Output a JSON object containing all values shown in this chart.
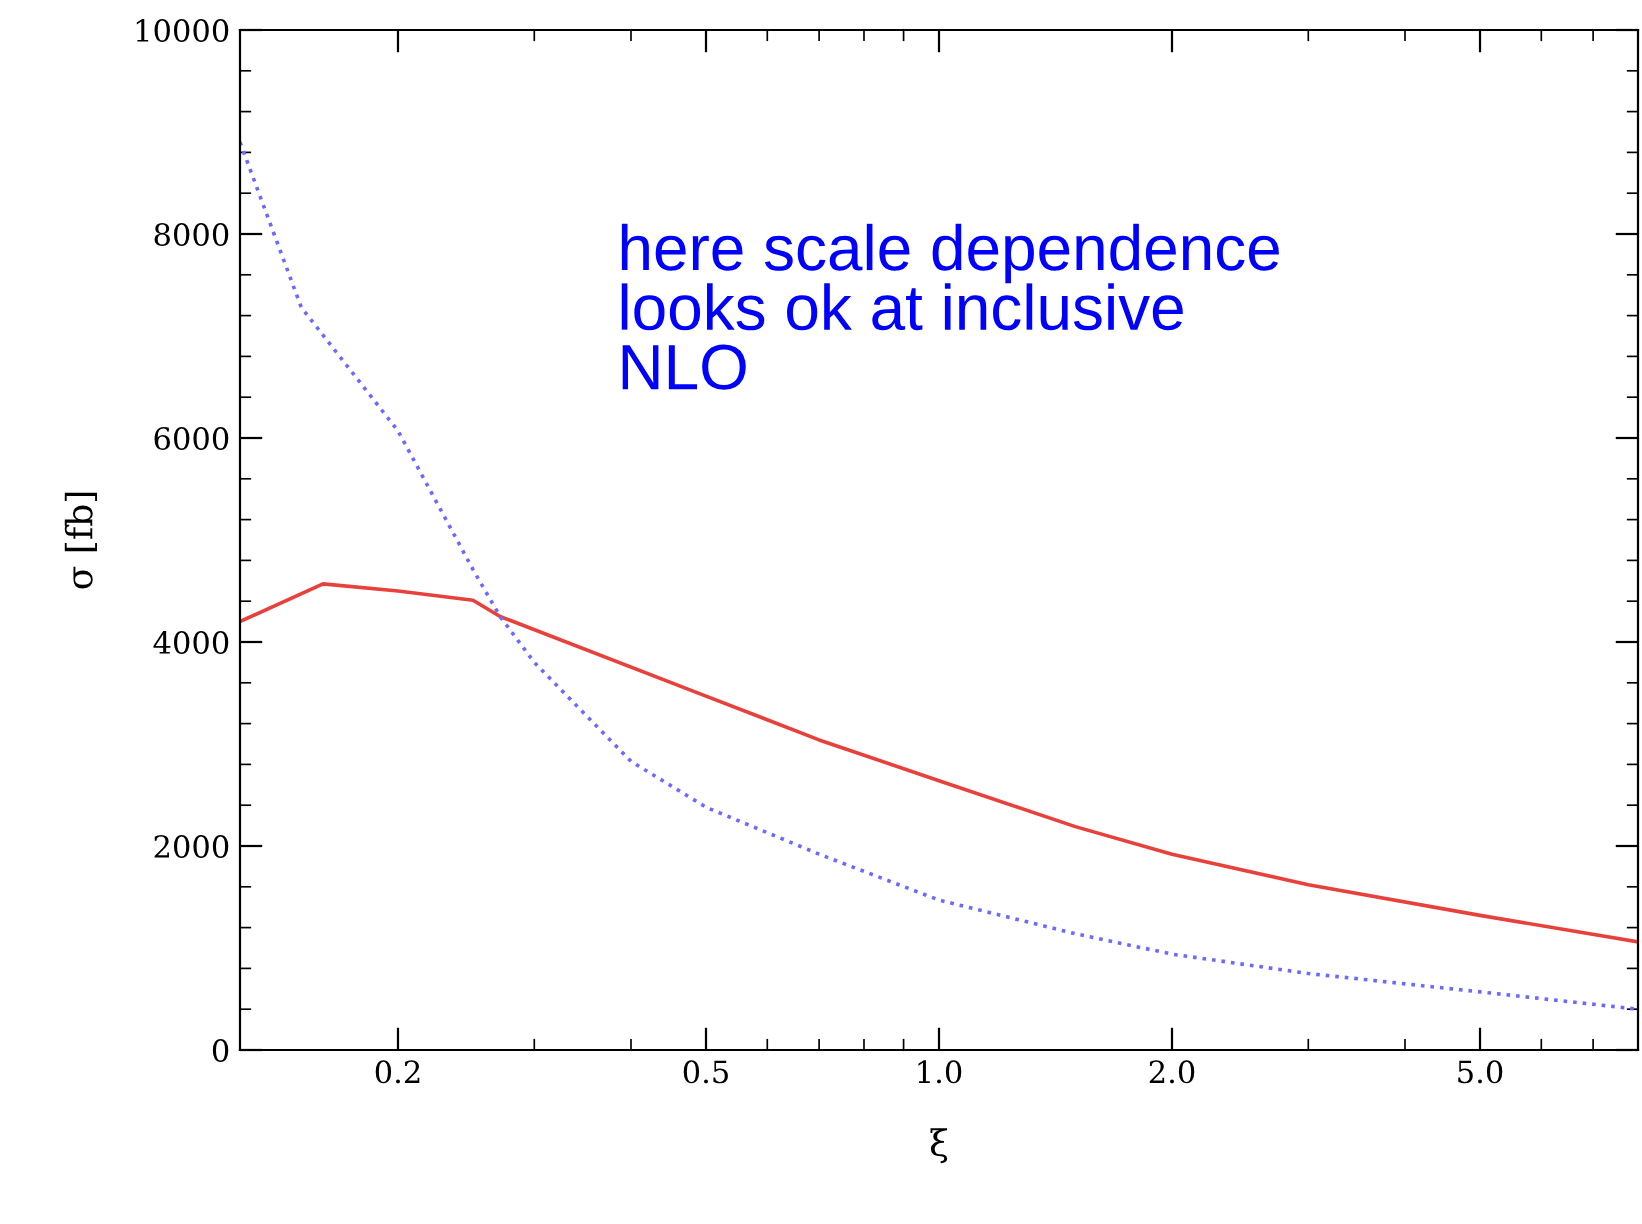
{
  "chart_data": {
    "type": "line",
    "xlabel": "ξ",
    "ylabel": "σ [fb]",
    "log": "x",
    "xlim": [
      0.125,
      8
    ],
    "xticks": [
      {
        "value": 0.2,
        "label": "0.2"
      },
      {
        "value": 0.5,
        "label": "0.5"
      },
      {
        "value": 1,
        "label": "1.0"
      },
      {
        "value": 2,
        "label": "2.0"
      },
      {
        "value": 5,
        "label": "5.0"
      }
    ],
    "ylim": [
      0,
      10000
    ],
    "yticks": [
      0,
      2000,
      4000,
      6000,
      8000,
      10000
    ],
    "grid": false,
    "legend": false,
    "marker": "none",
    "annotations": [
      "here scale dependence\nlooks ok at inclusive\nNLO"
    ],
    "series": [
      {
        "color": "#e8413c",
        "line_style": "solid",
        "x": [
          0.125,
          0.16,
          0.2,
          0.25,
          0.271,
          0.5,
          0.7,
          1.0,
          1.5,
          2.0,
          3.0,
          5.0,
          8.0
        ],
        "values": [
          4200,
          4570,
          4500,
          4410,
          4250,
          3470,
          3040,
          2640,
          2190,
          1920,
          1620,
          1320,
          1060
        ]
      },
      {
        "color": "#6a6aff",
        "line_style": "dotted",
        "x": [
          0.125,
          0.15,
          0.2,
          0.25,
          0.271,
          0.3,
          0.4,
          0.5,
          0.7,
          1.0,
          1.5,
          2.0,
          3.0,
          5.0,
          8.0
        ],
        "values": [
          8900,
          7280,
          6070,
          4710,
          4250,
          3800,
          2830,
          2380,
          1920,
          1470,
          1140,
          940,
          750,
          570,
          400
        ]
      }
    ]
  }
}
